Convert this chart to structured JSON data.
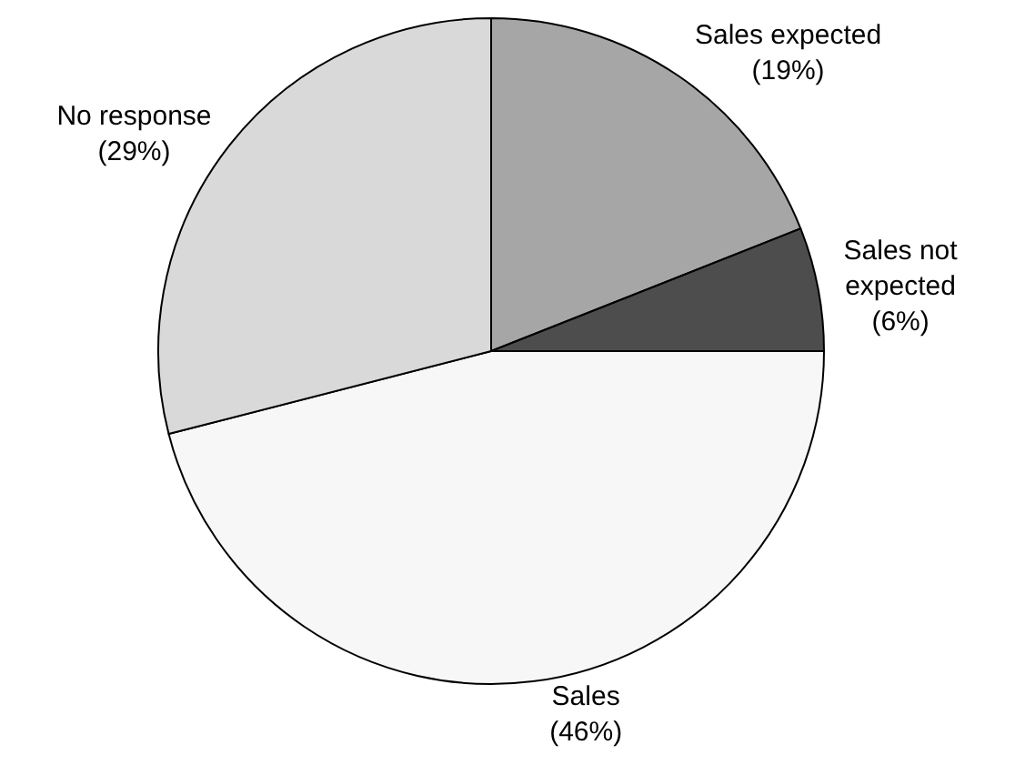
{
  "chart_data": {
    "type": "pie",
    "categories": [
      "Sales expected",
      "Sales not\nexpected",
      "Sales",
      "No response"
    ],
    "values": [
      19,
      6,
      46,
      29
    ],
    "value_labels": [
      "(19%)",
      "(6%)",
      "(46%)",
      "(29%)"
    ],
    "colors": [
      "#a6a6a6",
      "#4d4d4d",
      "#f7f7f7",
      "#d9d9d9"
    ],
    "legend": false
  }
}
